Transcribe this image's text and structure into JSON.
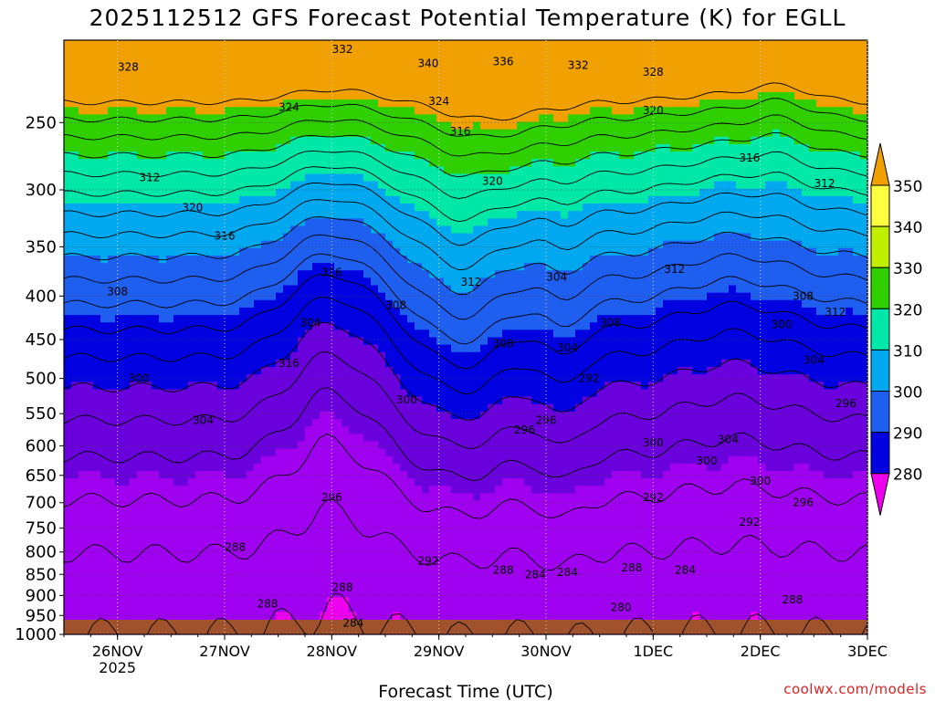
{
  "chart_data": {
    "type": "heatmap",
    "title": "2025112512 GFS Forecast Potential Temperature (K) for EGLL",
    "xlabel": "Forecast Time (UTC)",
    "ylabel": "",
    "x_ticks": [
      "26NOV",
      "27NOV",
      "28NOV",
      "29NOV",
      "30NOV",
      "1DEC",
      "2DEC",
      "3DEC"
    ],
    "x_tick_year": "2025",
    "x_range_days": [
      -0.5,
      7.0
    ],
    "y_ticks": [
      250,
      300,
      350,
      400,
      450,
      500,
      550,
      600,
      650,
      700,
      750,
      800,
      850,
      900,
      950,
      1000
    ],
    "y_range_hpa": [
      200,
      1000
    ],
    "y_scale": "log-pressure",
    "colorbar_levels": [
      280,
      290,
      300,
      310,
      320,
      330,
      340,
      350
    ],
    "colorbar_colors": [
      "#ee00ee",
      "#a000f0",
      "#6a00dc",
      "#0000e0",
      "#1e5ff0",
      "#00a8f0",
      "#00e8a8",
      "#30d000",
      "#c0f000",
      "#ffff40",
      "#f0a000"
    ],
    "contour_interval": 4,
    "contour_labels": [
      "328",
      "332",
      "340",
      "336",
      "332",
      "328",
      "324",
      "324",
      "320",
      "316",
      "312",
      "320",
      "320",
      "316",
      "312",
      "316",
      "316",
      "312",
      "308",
      "308",
      "304",
      "312",
      "312",
      "304",
      "308",
      "308",
      "304",
      "316",
      "304",
      "300",
      "300",
      "308",
      "300",
      "296",
      "304",
      "292",
      "296",
      "296",
      "300",
      "304",
      "288",
      "292",
      "292",
      "288",
      "296",
      "300",
      "300",
      "296",
      "292",
      "288",
      "284",
      "288",
      "284",
      "284",
      "288",
      "280",
      "284",
      "288"
    ],
    "surface_color": "#a0522d",
    "legend": "colorbar-right"
  },
  "credit": "coolwx.com/models"
}
